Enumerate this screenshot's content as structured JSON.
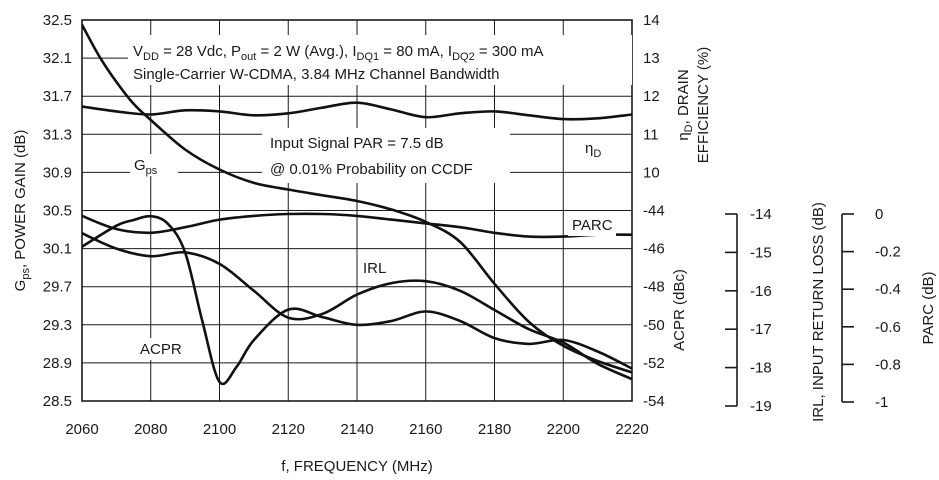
{
  "chart_data": {
    "type": "line",
    "x": {
      "label": "f, FREQUENCY (MHz)",
      "min": 2060,
      "max": 2220,
      "ticks": [
        "2060",
        "2080",
        "2100",
        "2120",
        "2140",
        "2160",
        "2180",
        "2200",
        "2220"
      ],
      "grid": true
    },
    "y_left": {
      "label": "G_ps, POWER GAIN (dB)",
      "label_parts": [
        {
          "t": "G"
        },
        {
          "t": "ps",
          "sub": true
        },
        {
          "t": ", POWER GAIN (dB)"
        }
      ],
      "min": 28.5,
      "max": 32.5,
      "ticks": [
        "32.5",
        "32.1",
        "31.7",
        "31.3",
        "30.9",
        "30.5",
        "30.1",
        "29.7",
        "29.3",
        "28.9",
        "28.5"
      ],
      "grid": true
    },
    "y_right_top": {
      "label_line1": "η_D, DRAIN",
      "label_line1_parts": [
        {
          "t": "η"
        },
        {
          "t": "D",
          "sub": true
        },
        {
          "t": ", DRAIN"
        }
      ],
      "label_line2": "EFFICIENCY (%)",
      "min": 10,
      "max": 14,
      "ticks": [
        "14",
        "13",
        "12",
        "11",
        "10"
      ]
    },
    "y_right_mid": {
      "label": "ACPR (dBc)",
      "min": -54,
      "max": -44,
      "ticks": [
        "-44",
        "-46",
        "-48",
        "-50",
        "-52",
        "-54"
      ]
    },
    "y_irl": {
      "label": "IRL, INPUT RETURN LOSS (dB)",
      "min": -19,
      "max": -14,
      "ticks": [
        "-14",
        "-15",
        "-16",
        "-17",
        "-18",
        "-19"
      ]
    },
    "y_parc": {
      "label": "PARC (dB)",
      "min": -1,
      "max": 0,
      "ticks": [
        "0",
        "-0.2",
        "-0.4",
        "-0.6",
        "-0.8",
        "-1"
      ]
    },
    "annotations": {
      "cond_line1_parts": [
        {
          "t": "V"
        },
        {
          "t": "DD",
          "sub": true
        },
        {
          "t": " = 28 Vdc, P"
        },
        {
          "t": "out",
          "sub": true
        },
        {
          "t": " = 2 W (Avg.), I"
        },
        {
          "t": "DQ1",
          "sub": true
        },
        {
          "t": " = 80 mA, I"
        },
        {
          "t": "DQ2",
          "sub": true
        },
        {
          "t": " = 300 mA"
        }
      ],
      "cond_line2": "Single-Carrier W-CDMA, 3.84 MHz Channel Bandwidth",
      "par_line1": "Input Signal PAR = 7.5 dB",
      "par_line2": "@ 0.01% Probability on CCDF"
    },
    "series": [
      {
        "name": "G_ps",
        "label_parts": [
          {
            "t": "G"
          },
          {
            "t": "ps",
            "sub": true
          }
        ],
        "axis": "y_left",
        "x": [
          2060,
          2065,
          2070,
          2075,
          2080,
          2090,
          2100,
          2110,
          2120,
          2130,
          2140,
          2150,
          2160,
          2170,
          2180,
          2190,
          2200,
          2210,
          2220
        ],
        "y": [
          32.45,
          32.12,
          31.85,
          31.62,
          31.45,
          31.14,
          30.93,
          30.79,
          30.72,
          30.66,
          30.6,
          30.51,
          30.38,
          30.17,
          29.73,
          29.33,
          29.08,
          28.92,
          28.8
        ]
      },
      {
        "name": "η_D",
        "label_parts": [
          {
            "t": "η"
          },
          {
            "t": "D",
            "sub": true
          }
        ],
        "axis": "y_right_top",
        "x": [
          2060,
          2070,
          2080,
          2090,
          2100,
          2110,
          2120,
          2130,
          2140,
          2150,
          2160,
          2170,
          2180,
          2190,
          2200,
          2210,
          2220
        ],
        "y": [
          11.73,
          11.6,
          11.52,
          11.63,
          11.6,
          11.5,
          11.55,
          11.7,
          11.83,
          11.65,
          11.45,
          11.55,
          11.6,
          11.5,
          11.4,
          11.42,
          11.52
        ]
      },
      {
        "name": "PARC",
        "label_parts": [
          {
            "t": "PARC"
          }
        ],
        "axis": "y_parc",
        "x": [
          2060,
          2070,
          2080,
          2090,
          2100,
          2110,
          2120,
          2130,
          2140,
          2150,
          2160,
          2170,
          2180,
          2190,
          2200,
          2210,
          2220
        ],
        "y": [
          -0.01,
          -0.08,
          -0.1,
          -0.07,
          -0.03,
          -0.01,
          0.0,
          0.0,
          -0.01,
          -0.03,
          -0.05,
          -0.07,
          -0.1,
          -0.12,
          -0.12,
          -0.11,
          -0.11
        ]
      },
      {
        "name": "IRL",
        "label_parts": [
          {
            "t": "IRL"
          }
        ],
        "axis": "y_irl",
        "x": [
          2060,
          2070,
          2080,
          2090,
          2100,
          2110,
          2120,
          2130,
          2140,
          2150,
          2160,
          2170,
          2180,
          2190,
          2200,
          2210,
          2220
        ],
        "y": [
          -14.5,
          -14.9,
          -15.1,
          -15.0,
          -15.3,
          -16.0,
          -16.7,
          -16.6,
          -16.1,
          -15.8,
          -15.75,
          -16.0,
          -16.5,
          -17.0,
          -17.35,
          -17.9,
          -18.3
        ]
      },
      {
        "name": "ACPR",
        "label_parts": [
          {
            "t": "ACPR"
          }
        ],
        "axis": "y_right_mid",
        "x": [
          2060,
          2070,
          2075,
          2080,
          2085,
          2090,
          2095,
          2100,
          2105,
          2110,
          2120,
          2130,
          2140,
          2150,
          2160,
          2170,
          2180,
          2190,
          2200,
          2210,
          2220
        ],
        "y": [
          -45.9,
          -44.8,
          -44.5,
          -44.3,
          -44.7,
          -46.2,
          -49.8,
          -53.0,
          -52.2,
          -50.8,
          -49.2,
          -49.6,
          -50.0,
          -49.8,
          -49.3,
          -49.8,
          -50.7,
          -51.0,
          -50.8,
          -51.4,
          -52.3
        ]
      }
    ]
  }
}
